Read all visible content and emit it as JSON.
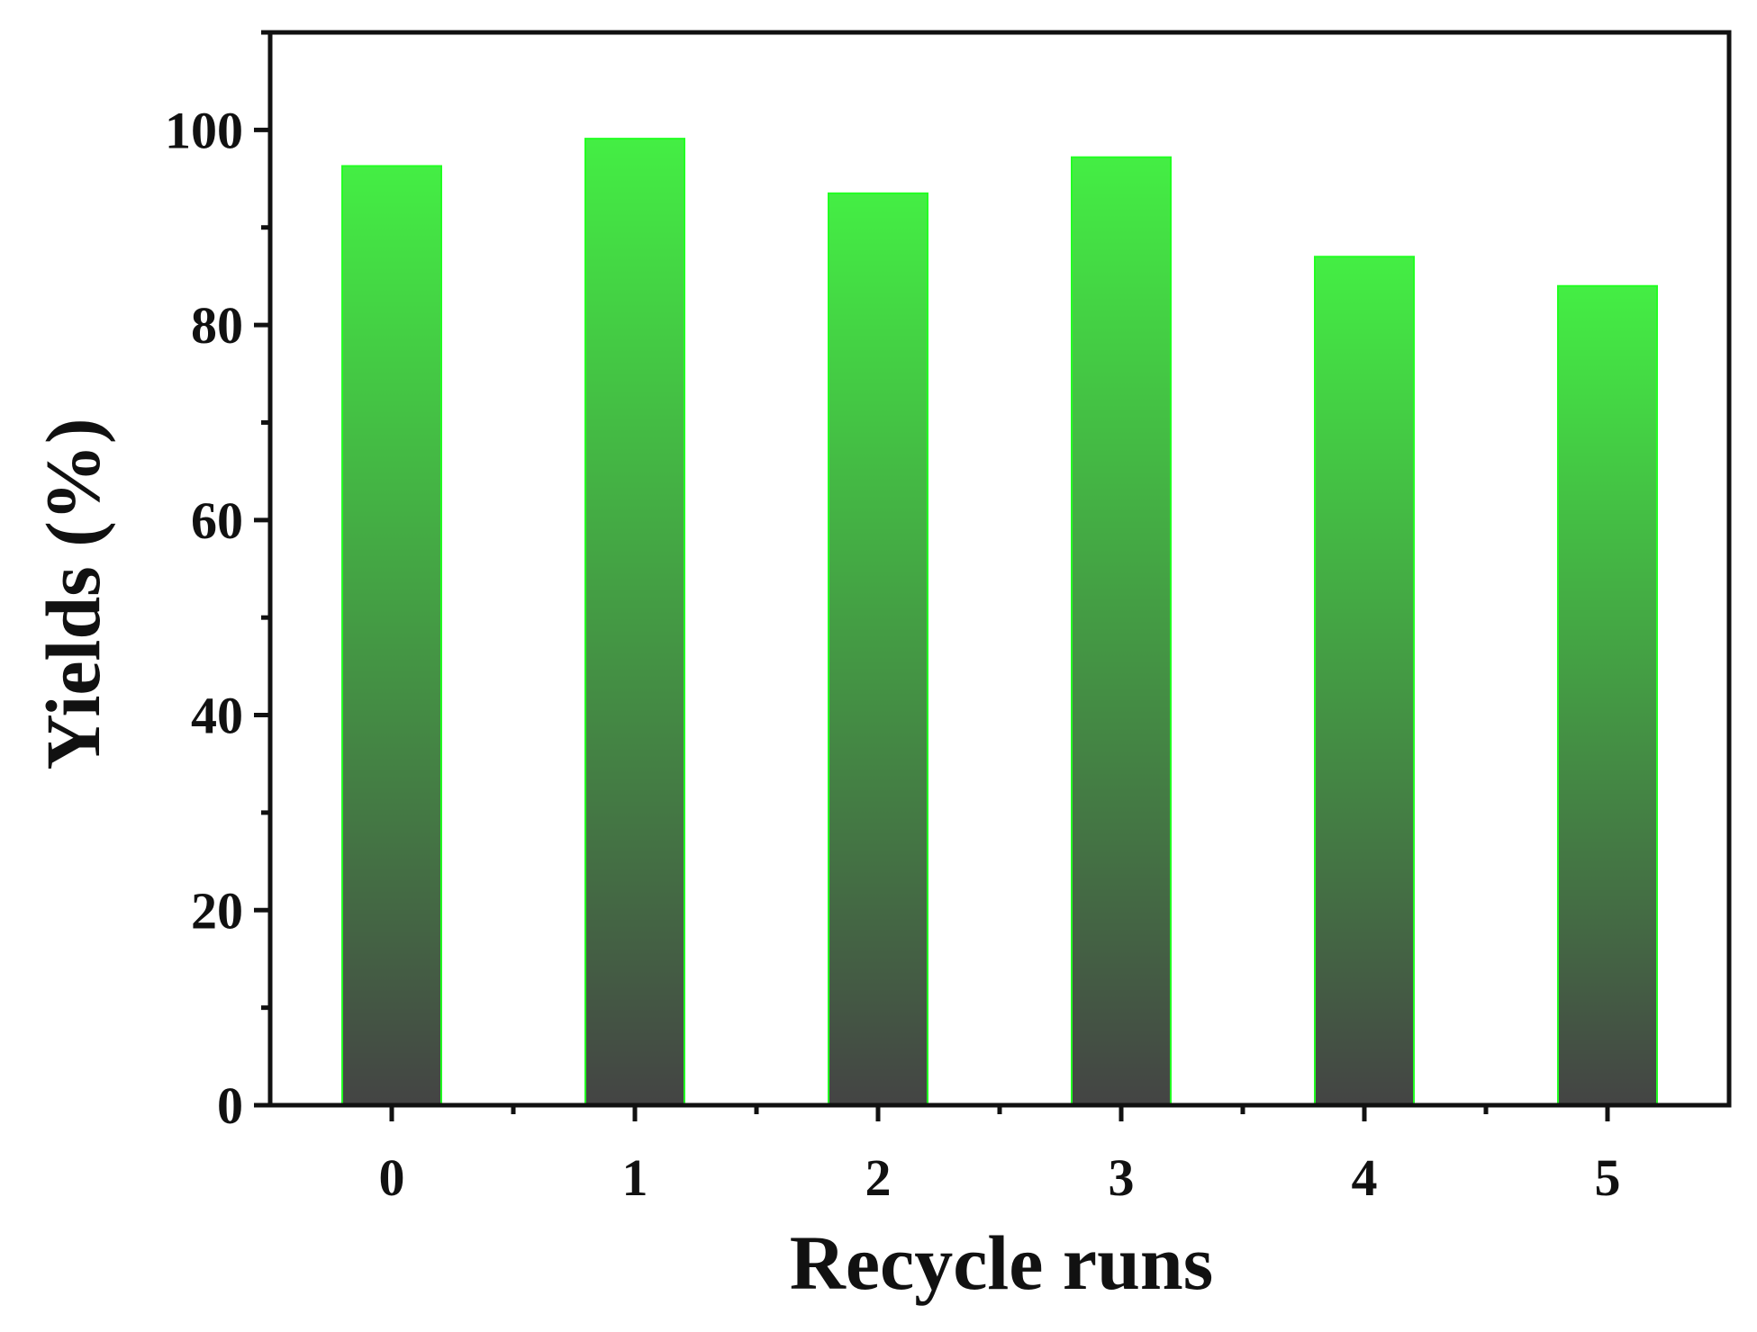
{
  "chart_data": {
    "type": "bar",
    "title": "",
    "xlabel": "Recycle runs",
    "ylabel": "Yields (%)",
    "categories": [
      "0",
      "1",
      "2",
      "3",
      "4",
      "5"
    ],
    "values": [
      96.3,
      99.1,
      93.5,
      97.2,
      87.0,
      84.0
    ],
    "ylim": [
      0,
      110
    ],
    "yticks": [
      "0",
      "20",
      "40",
      "60",
      "80",
      "100"
    ],
    "grid": false,
    "legend": "none",
    "colors": {
      "bar_top": "#44ee44",
      "bar_bottom": "#444444",
      "bar_edge": "#22ff22",
      "axis": "#111111"
    }
  }
}
